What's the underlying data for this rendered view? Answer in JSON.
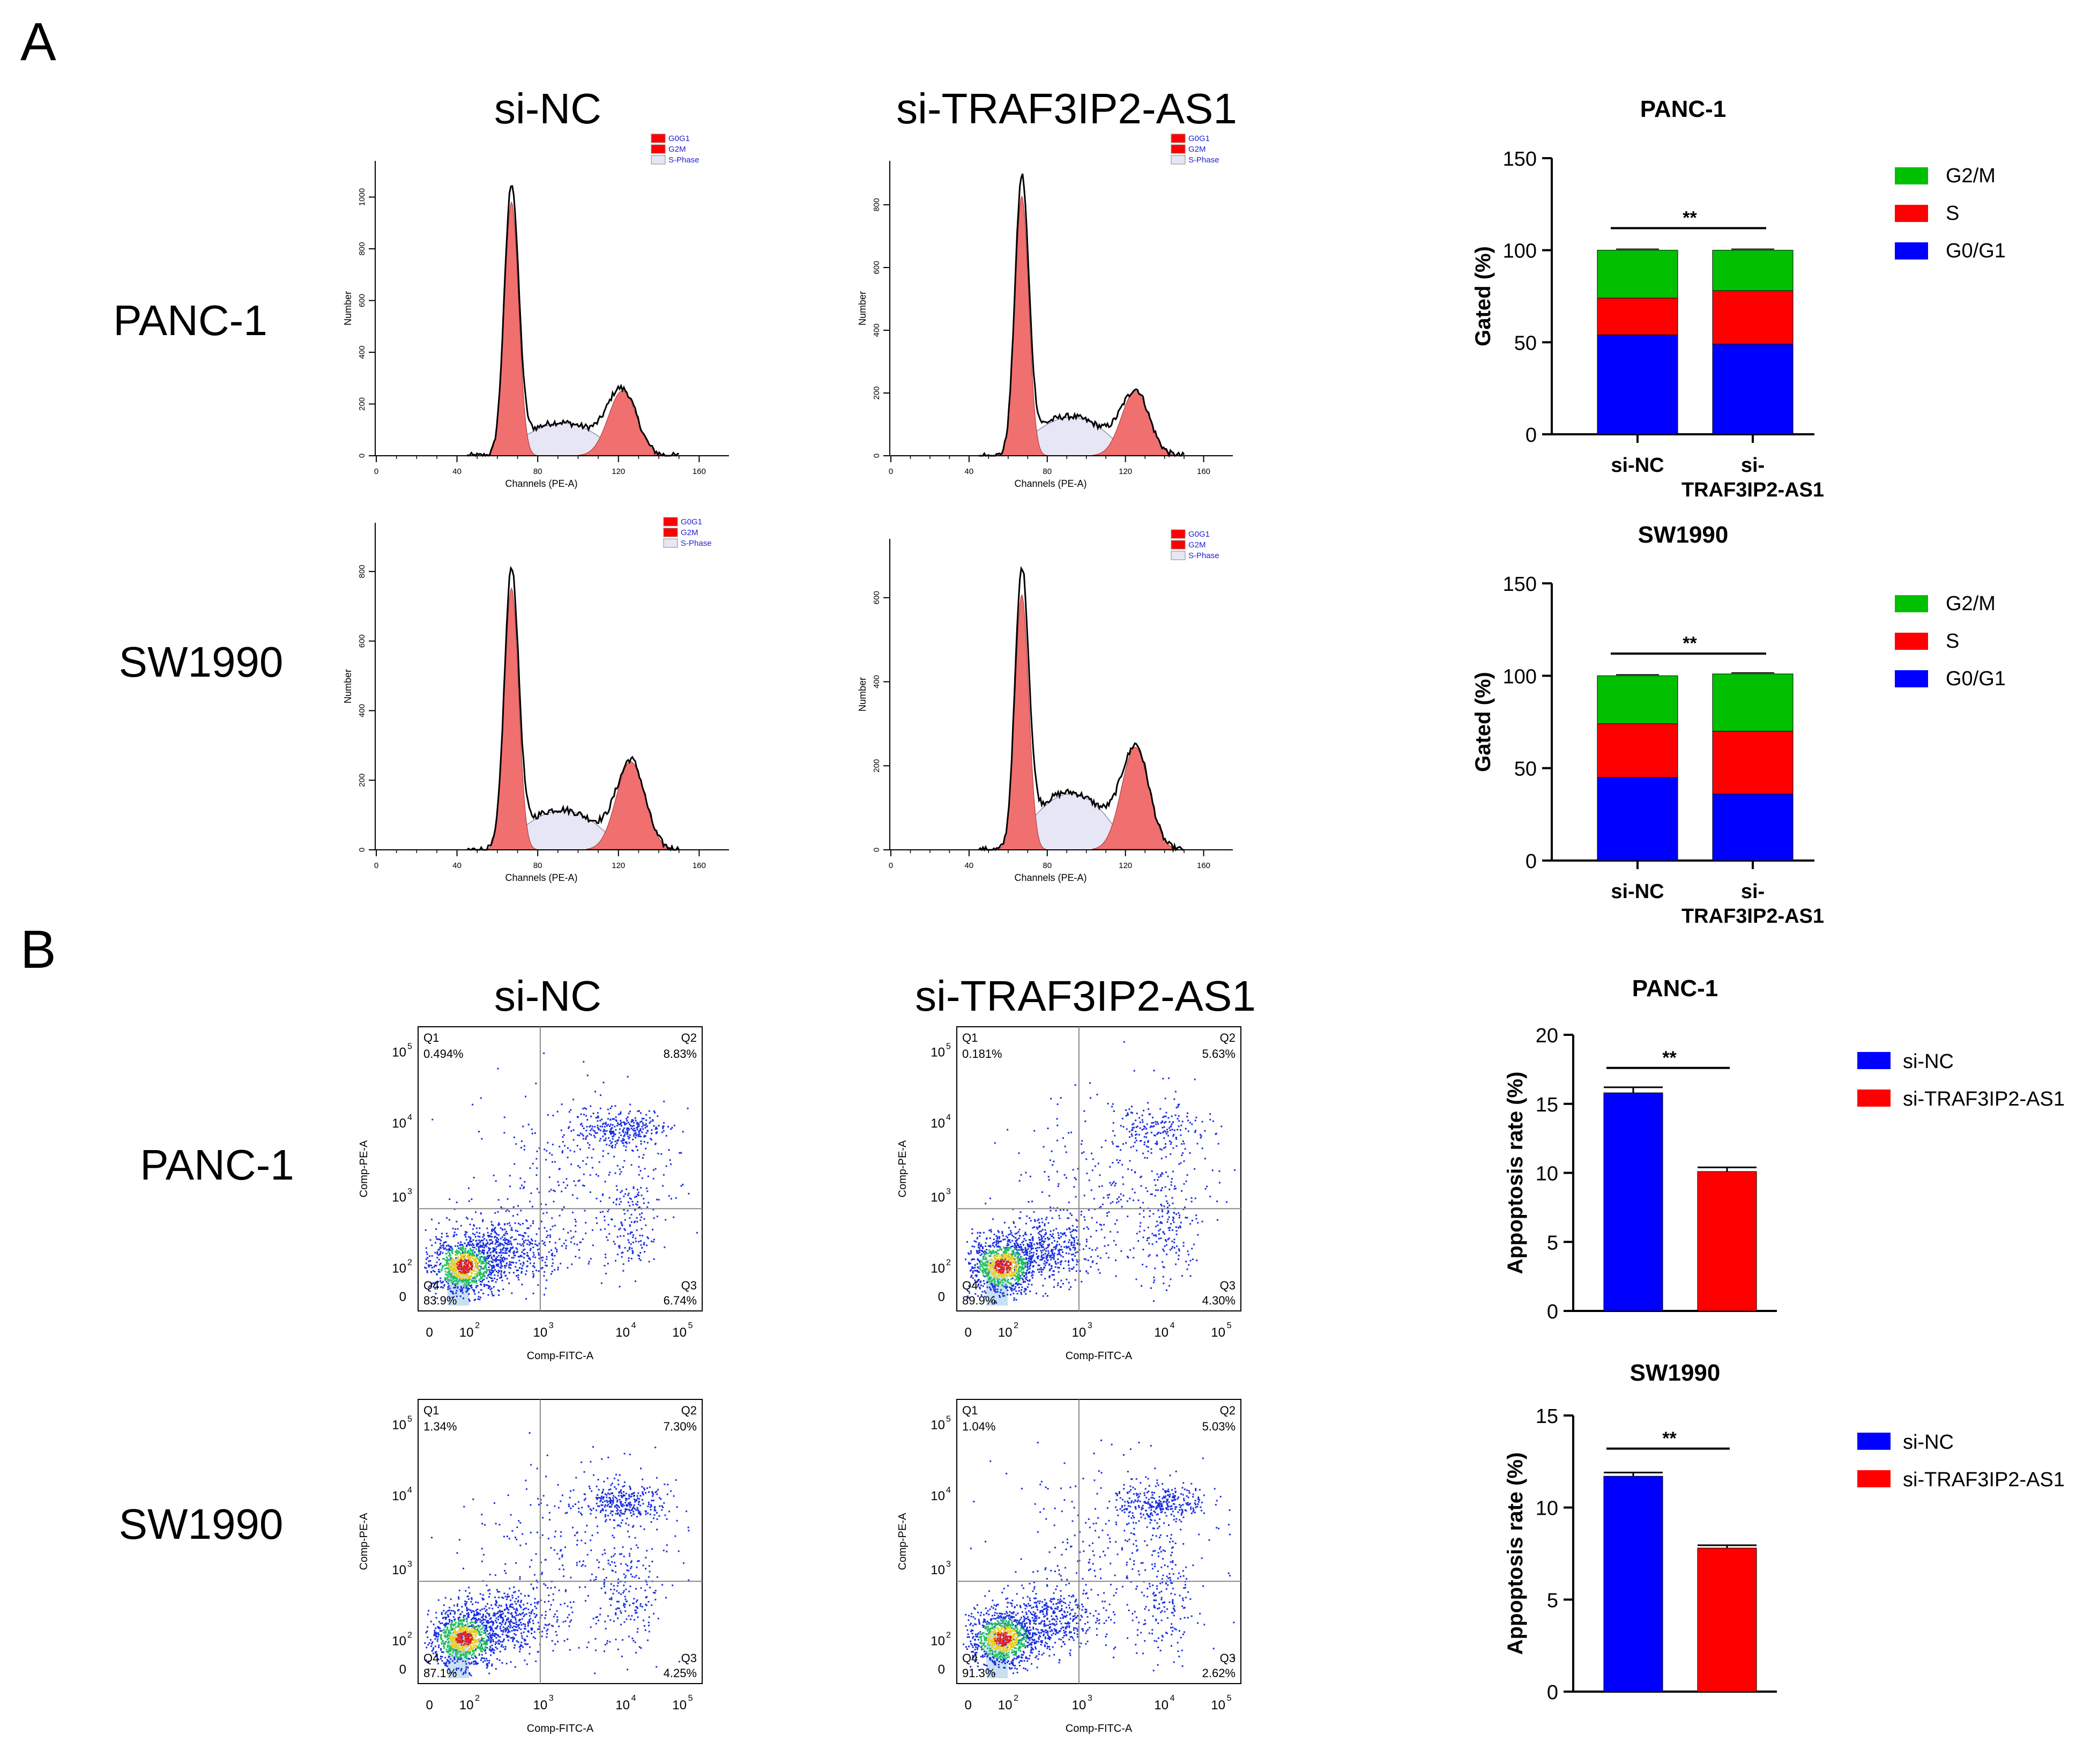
{
  "figure": {
    "panel_a_letter": "A",
    "panel_b_letter": "B",
    "col_si_nc": "si-NC",
    "col_si_traf": "si-TRAF3IP2-AS1",
    "row_panc": "PANC-1",
    "row_sw": "SW1990"
  },
  "histo": {
    "xlabel": "Channels (PE-A)",
    "ylabel": "Number",
    "xticks": [
      "0",
      "40",
      "80",
      "120",
      "160"
    ],
    "legend": [
      "G0G1",
      "G2M",
      "S-Phase"
    ],
    "panels": [
      {
        "yticks": [
          "0",
          "200",
          "400",
          "600",
          "800",
          "1000"
        ]
      },
      {
        "yticks": [
          "0",
          "200",
          "400",
          "600",
          "800"
        ]
      },
      {
        "yticks": [
          "0",
          "200",
          "400",
          "600",
          "800"
        ]
      },
      {
        "yticks": [
          "0",
          "200",
          "400",
          "600"
        ]
      }
    ]
  },
  "flow": {
    "xlabel": "Comp-FITC-A",
    "ylabel": "Comp-PE-A",
    "ticks": [
      "0",
      "10",
      "10",
      "10",
      "10"
    ],
    "tick_exp": [
      "2",
      "3",
      "4",
      "5"
    ],
    "quadrant_names": [
      "Q1",
      "Q2",
      "Q3",
      "Q4"
    ],
    "panels": [
      {
        "q1": "0.494%",
        "q2": "8.83%",
        "q3": "6.74%",
        "q4": "83.9%"
      },
      {
        "q1": "0.181%",
        "q2": "5.63%",
        "q3": "4.30%",
        "q4": "89.9%"
      },
      {
        "q1": "1.34%",
        "q2": "7.30%",
        "q3": "4.25%",
        "q4": "87.1%"
      },
      {
        "q1": "1.04%",
        "q2": "5.03%",
        "q3": "2.62%",
        "q4": "91.3%"
      }
    ]
  },
  "colors": {
    "blue": "#0000ff",
    "red": "#ff0000",
    "green": "#00c000",
    "hist_fill": "#f07070",
    "s_fill": "#e6e6f4"
  },
  "chart_data": [
    {
      "type": "bar",
      "title": "PANC-1",
      "ylabel": "Gated (%)",
      "ylim": [
        0,
        150
      ],
      "yticks": [
        "0",
        "50",
        "100",
        "150"
      ],
      "categories": [
        "si-NC",
        "si-TRAF3IP2-AS1"
      ],
      "category_lines": [
        [
          "si-NC"
        ],
        [
          "si-",
          "TRAF3IP2-AS1"
        ]
      ],
      "stacked": true,
      "series": [
        {
          "name": "G0/G1",
          "values": [
            54,
            49
          ]
        },
        {
          "name": "S",
          "values": [
            20,
            29
          ]
        },
        {
          "name": "G2/M",
          "values": [
            26,
            22
          ]
        }
      ],
      "annotation": "**"
    },
    {
      "type": "bar",
      "title": "SW1990",
      "ylabel": "Gated (%)",
      "ylim": [
        0,
        150
      ],
      "yticks": [
        "0",
        "50",
        "100",
        "150"
      ],
      "categories": [
        "si-NC",
        "si-TRAF3IP2-AS1"
      ],
      "category_lines": [
        [
          "si-NC"
        ],
        [
          "si-",
          "TRAF3IP2-AS1"
        ]
      ],
      "stacked": true,
      "series": [
        {
          "name": "G0/G1",
          "values": [
            45,
            36
          ]
        },
        {
          "name": "S",
          "values": [
            29,
            34
          ]
        },
        {
          "name": "G2/M",
          "values": [
            26,
            31
          ]
        }
      ],
      "annotation": "**"
    },
    {
      "type": "bar",
      "title": "PANC-1",
      "ylabel": "Appoptosis rate (%)",
      "ylim": [
        0,
        20
      ],
      "yticks": [
        "0",
        "5",
        "10",
        "15",
        "20"
      ],
      "categories": [
        "si-NC",
        "si-TRAF3IP2-AS1"
      ],
      "values": [
        15.8,
        10.1
      ],
      "errors": [
        0.4,
        0.3
      ],
      "legend": [
        "si-NC",
        "si-TRAF3IP2-AS1"
      ],
      "annotation": "**"
    },
    {
      "type": "bar",
      "title": "SW1990",
      "ylabel": "Appoptosis rate (%)",
      "ylim": [
        0,
        15
      ],
      "yticks": [
        "0",
        "5",
        "10",
        "15"
      ],
      "categories": [
        "si-NC",
        "si-TRAF3IP2-AS1"
      ],
      "values": [
        11.7,
        7.8
      ],
      "errors": [
        0.2,
        0.15
      ],
      "legend": [
        "si-NC",
        "si-TRAF3IP2-AS1"
      ],
      "annotation": "**"
    }
  ]
}
